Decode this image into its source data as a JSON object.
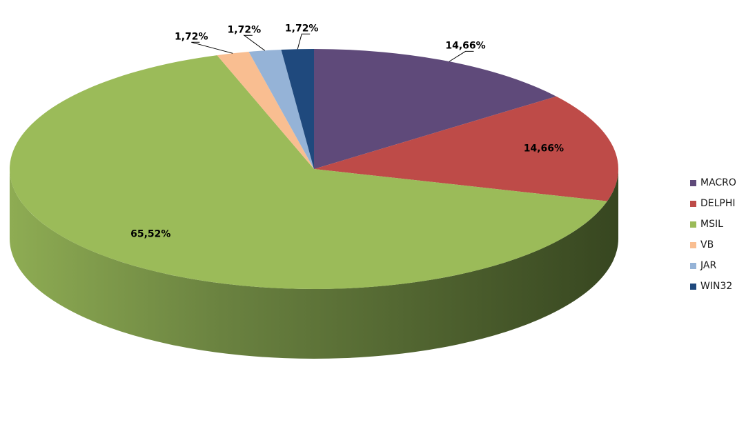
{
  "chart_data": {
    "type": "pie",
    "title": "",
    "legend_position": "right",
    "categories": [
      "MACRO",
      "DELPHI",
      "MSIL",
      "VB",
      "JAR",
      "WIN32"
    ],
    "values": [
      14.66,
      14.66,
      65.52,
      1.72,
      1.72,
      1.72
    ],
    "labels": [
      "14,66%",
      "14,66%",
      "65,52%",
      "1,72%",
      "1,72%",
      "1,72%"
    ],
    "colors": [
      "#5F4A7A",
      "#BE4B48",
      "#9BBB59",
      "#F9BE91",
      "#95B3D7",
      "#1F497D"
    ]
  }
}
